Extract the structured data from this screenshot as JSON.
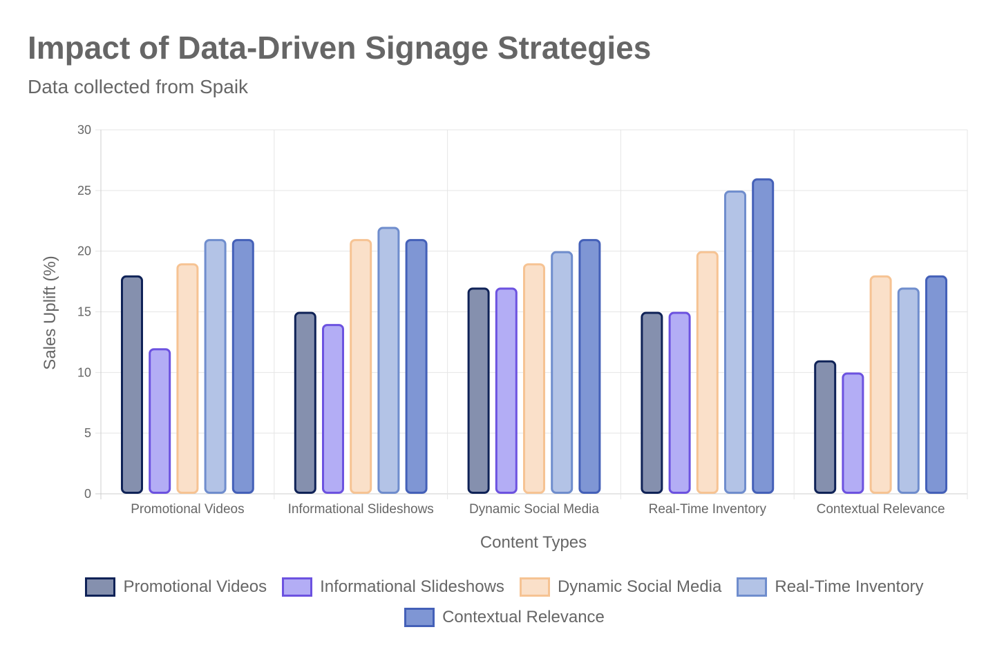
{
  "header": {
    "title": "Impact of Data-Driven Signage Strategies",
    "subtitle": "Data collected from Spaik"
  },
  "chart_data": {
    "type": "bar",
    "title": "Impact of Data-Driven Signage Strategies",
    "subtitle": "Data collected from Spaik",
    "xlabel": "Content Types",
    "ylabel": "Sales Uplift (%)",
    "ylim": [
      0,
      30
    ],
    "yticks": [
      0,
      5,
      10,
      15,
      20,
      25,
      30
    ],
    "grid": true,
    "legend_position": "bottom",
    "categories": [
      "Promotional Videos",
      "Informational Slideshows",
      "Dynamic Social Media",
      "Real-Time Inventory",
      "Contextual Relevance"
    ],
    "series": [
      {
        "name": "Promotional Videos",
        "values": [
          18,
          15,
          17,
          15,
          11
        ],
        "fill": "#8590ae",
        "stroke": "#0f2257"
      },
      {
        "name": "Informational Slideshows",
        "values": [
          12,
          14,
          17,
          15,
          10
        ],
        "fill": "#b3adf5",
        "stroke": "#6c52e0"
      },
      {
        "name": "Dynamic Social Media",
        "values": [
          19,
          21,
          19,
          20,
          18
        ],
        "fill": "#fae0c9",
        "stroke": "#f6c393"
      },
      {
        "name": "Real-Time Inventory",
        "values": [
          21,
          22,
          20,
          25,
          17
        ],
        "fill": "#b3c3e6",
        "stroke": "#6f8dcd"
      },
      {
        "name": "Contextual Relevance",
        "values": [
          21,
          21,
          21,
          26,
          18
        ],
        "fill": "#7f96d4",
        "stroke": "#4460b8"
      }
    ]
  }
}
